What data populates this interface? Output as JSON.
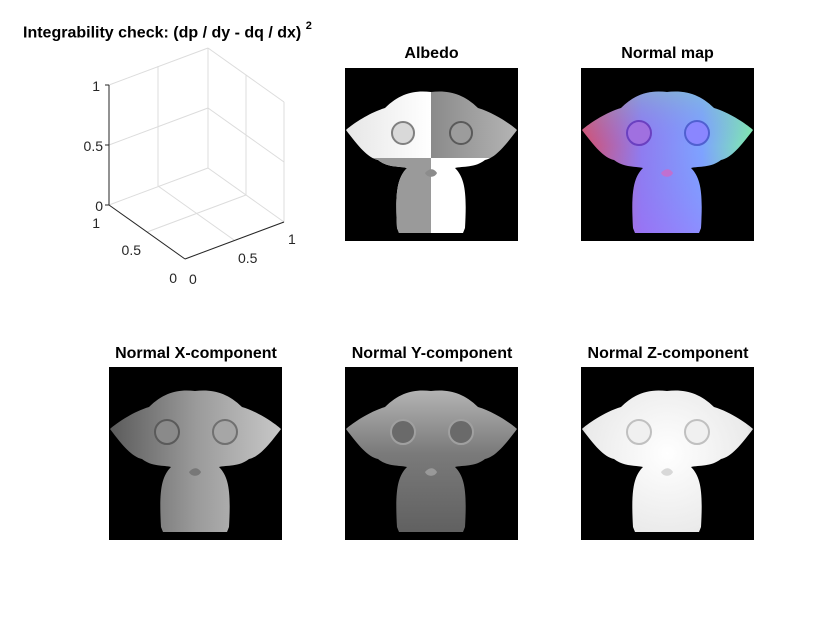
{
  "chart_data": [
    {
      "type": "surface",
      "title": "Integrability check: (dp / dy - dq / dx)",
      "title_superscript": "2",
      "xlim": [
        0,
        1
      ],
      "ylim": [
        0,
        1
      ],
      "zlim": [
        0,
        1
      ],
      "x_ticks": [
        "0",
        "0.5",
        "1"
      ],
      "y_ticks": [
        "0",
        "0.5",
        "1"
      ],
      "z_ticks": [
        "0",
        "0.5",
        "1"
      ],
      "grid": true,
      "series": []
    },
    {
      "type": "image",
      "title": "Albedo",
      "colormap": "gray"
    },
    {
      "type": "image",
      "title": "Normal map",
      "colormap": "rgb"
    },
    {
      "type": "image",
      "title": "Normal X-component",
      "colormap": "gray"
    },
    {
      "type": "image",
      "title": "Normal Y-component",
      "colormap": "gray"
    },
    {
      "type": "image",
      "title": "Normal Z-component",
      "colormap": "gray"
    }
  ],
  "colors": {
    "background": "#ffffff",
    "grid": "#dcdcdc",
    "axis": "#262626",
    "image_bg": "#000000"
  }
}
